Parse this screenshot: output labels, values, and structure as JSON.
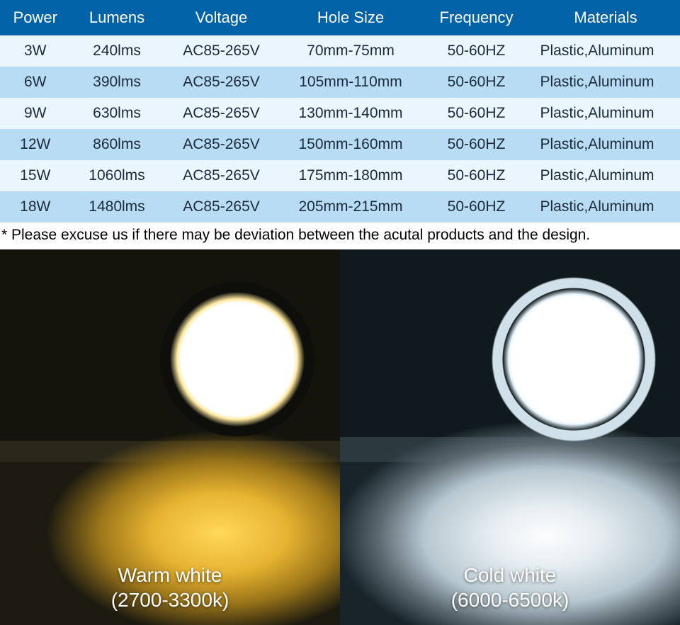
{
  "table": {
    "header_bg": "#0263a8",
    "header_color": "#ffffff",
    "row_even_bg": "#ebf5fe",
    "row_odd_bg": "#b8dcf3",
    "text_color": "#1a2a3a",
    "columns": [
      {
        "label": "Power",
        "class": "col-power"
      },
      {
        "label": "Lumens",
        "class": "col-lumens"
      },
      {
        "label": "Voltage",
        "class": "col-voltage"
      },
      {
        "label": "Hole Size",
        "class": "col-hole"
      },
      {
        "label": "Frequency",
        "class": "col-freq"
      },
      {
        "label": "Materials",
        "class": "col-mat"
      }
    ],
    "rows": [
      [
        "3W",
        "240lms",
        "AC85-265V",
        "70mm-75mm",
        "50-60HZ",
        "Plastic,Aluminum"
      ],
      [
        "6W",
        "390lms",
        "AC85-265V",
        "105mm-110mm",
        "50-60HZ",
        "Plastic,Aluminum"
      ],
      [
        "9W",
        "630lms",
        "AC85-265V",
        "130mm-140mm",
        "50-60HZ",
        "Plastic,Aluminum"
      ],
      [
        "12W",
        "860lms",
        "AC85-265V",
        "150mm-160mm",
        "50-60HZ",
        "Plastic,Aluminum"
      ],
      [
        "15W",
        "1060lms",
        "AC85-265V",
        "175mm-180mm",
        "50-60HZ",
        "Plastic,Aluminum"
      ],
      [
        "18W",
        "1480lms",
        "AC85-265V",
        "205mm-215mm",
        "50-60HZ",
        "Plastic,Aluminum"
      ]
    ]
  },
  "disclaimer": "* Please excuse us if there may be deviation between the acutal products and the design.",
  "photos": {
    "warm": {
      "title": "Warm white",
      "range": "(2700-3300k)",
      "glow_color": "#ffd85a",
      "bg_color": "#14140d"
    },
    "cold": {
      "title": "Cold white",
      "range": "(6000-6500k)",
      "glow_color": "#e6eef2",
      "bg_color": "#101a1e"
    }
  }
}
